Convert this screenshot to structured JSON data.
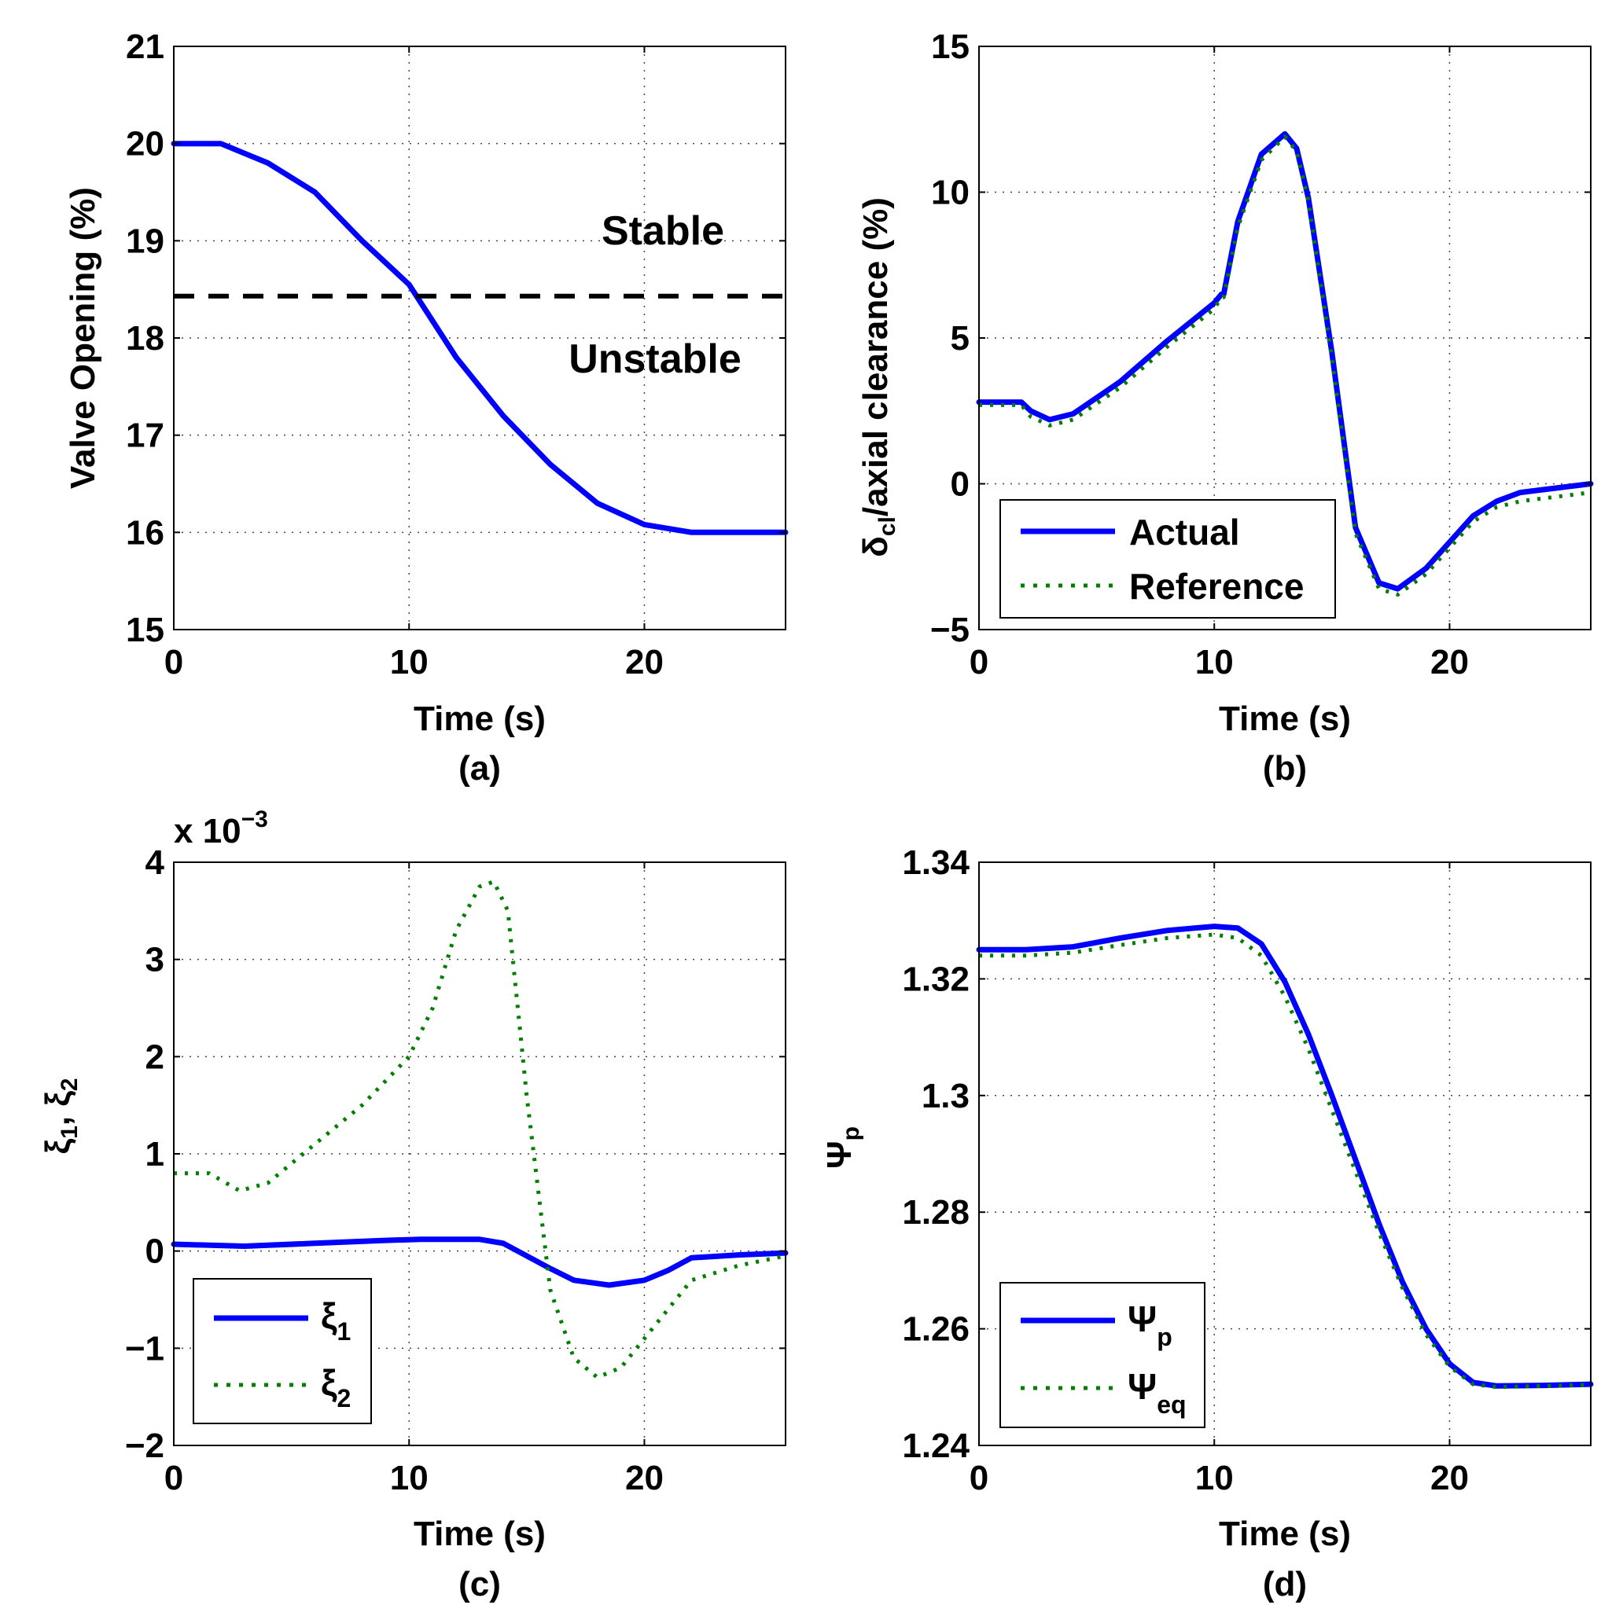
{
  "colors": {
    "actual": "#0000ff",
    "reference": "#007f00",
    "threshold": "#000000",
    "grid": "#444444",
    "axes": "#000000"
  },
  "chart_data": [
    {
      "panel": "(a)",
      "type": "line",
      "xlabel": "Time (s)",
      "ylabel": "Valve Opening (%)",
      "xlim": [
        0,
        26
      ],
      "ylim": [
        15,
        21
      ],
      "xticks": [
        0,
        10,
        20
      ],
      "xtick_labels": [
        "0",
        "10",
        "20"
      ],
      "yticks": [
        15,
        16,
        17,
        18,
        19,
        20,
        21
      ],
      "ytick_labels": [
        "15",
        "16",
        "17",
        "18",
        "19",
        "20",
        "21"
      ],
      "grid": true,
      "annotations": [
        "Stable",
        "Unstable"
      ],
      "series": [
        {
          "name": "Valve Opening",
          "style": "solid",
          "color": "#0000ff",
          "x": [
            0,
            2,
            4,
            6,
            8,
            10,
            12,
            14,
            16,
            18,
            20,
            22,
            26
          ],
          "y": [
            20,
            20,
            19.8,
            19.5,
            19.0,
            18.55,
            17.8,
            17.2,
            16.7,
            16.3,
            16.08,
            16.0,
            16.0
          ]
        },
        {
          "name": "Stability threshold",
          "style": "dashed",
          "color": "#000000",
          "x": [
            0,
            26.4
          ],
          "y": [
            18.43,
            18.43
          ]
        }
      ]
    },
    {
      "panel": "(b)",
      "type": "line",
      "xlabel": "Time (s)",
      "ylabel": "δcl/axial clearance (%)",
      "ylabel_main": "δ",
      "ylabel_sub": "cl",
      "ylabel_rest": "/axial clearance (%)",
      "xlim": [
        0,
        26
      ],
      "ylim": [
        -5,
        15
      ],
      "xticks": [
        0,
        10,
        20
      ],
      "xtick_labels": [
        "0",
        "10",
        "20"
      ],
      "yticks": [
        -5,
        0,
        5,
        10,
        15
      ],
      "ytick_labels": [
        "−5",
        "0",
        "5",
        "10",
        "15"
      ],
      "grid": true,
      "legend": {
        "position": "bottom-left",
        "entries": [
          "Actual",
          "Reference"
        ]
      },
      "series": [
        {
          "name": "Actual",
          "style": "solid",
          "color": "#0000ff",
          "x": [
            0,
            1.8,
            2.2,
            3,
            4,
            6,
            8,
            10,
            10.3,
            10.4,
            11,
            12,
            13,
            13.5,
            14,
            15,
            16,
            17,
            17.8,
            19,
            20,
            21,
            22,
            23,
            24,
            26
          ],
          "y": [
            2.8,
            2.8,
            2.5,
            2.2,
            2.4,
            3.5,
            4.9,
            6.2,
            6.5,
            6.5,
            9.0,
            11.3,
            12.0,
            11.5,
            9.8,
            4.5,
            -1.5,
            -3.4,
            -3.6,
            -2.9,
            -2.0,
            -1.1,
            -0.6,
            -0.3,
            -0.2,
            0
          ]
        },
        {
          "name": "Reference",
          "style": "dotted",
          "color": "#007f00",
          "x": [
            0,
            1.8,
            2.2,
            3,
            4,
            6,
            8,
            10,
            10.3,
            10.4,
            11,
            12,
            13,
            13.5,
            14,
            15,
            16,
            17,
            17.8,
            19,
            20,
            21,
            22,
            23,
            24,
            26
          ],
          "y": [
            2.7,
            2.7,
            2.3,
            2.0,
            2.2,
            3.3,
            4.7,
            6.0,
            6.4,
            6.4,
            8.8,
            11.1,
            11.9,
            11.4,
            9.7,
            4.3,
            -1.7,
            -3.6,
            -3.8,
            -3.1,
            -2.2,
            -1.3,
            -0.8,
            -0.6,
            -0.5,
            -0.3
          ]
        }
      ]
    },
    {
      "panel": "(c)",
      "type": "line",
      "xlabel": "Time (s)",
      "ylabel": "ξ1, ξ2",
      "exponent_label": "x 10",
      "exponent_power": "−3",
      "xlim": [
        0,
        26
      ],
      "ylim": [
        -2,
        4
      ],
      "xticks": [
        0,
        10,
        20
      ],
      "xtick_labels": [
        "0",
        "10",
        "20"
      ],
      "yticks": [
        -2,
        -1,
        0,
        1,
        2,
        3,
        4
      ],
      "ytick_labels": [
        "−2",
        "−1",
        "0",
        "1",
        "2",
        "3",
        "4"
      ],
      "grid": true,
      "legend": {
        "position": "bottom-left",
        "entries": [
          "ξ1",
          "ξ2"
        ]
      },
      "series": [
        {
          "name": "ξ1",
          "style": "solid",
          "color": "#0000ff",
          "x": [
            0,
            3,
            6,
            9,
            10.5,
            13,
            14,
            15,
            16,
            17,
            18.5,
            20,
            21,
            22,
            24,
            26
          ],
          "y": [
            0.07,
            0.05,
            0.08,
            0.11,
            0.12,
            0.12,
            0.08,
            -0.05,
            -0.18,
            -0.3,
            -0.35,
            -0.3,
            -0.2,
            -0.07,
            -0.04,
            -0.02
          ]
        },
        {
          "name": "ξ2",
          "style": "dotted",
          "color": "#007f00",
          "x": [
            0,
            1.5,
            2.8,
            4,
            6,
            8,
            10,
            11,
            12,
            13,
            13.6,
            14.2,
            15,
            16,
            17,
            18,
            19,
            20,
            21,
            22,
            24,
            26
          ],
          "y": [
            0.8,
            0.8,
            0.62,
            0.7,
            1.1,
            1.5,
            2.0,
            2.5,
            3.3,
            3.75,
            3.8,
            3.5,
            1.6,
            -0.4,
            -1.1,
            -1.3,
            -1.2,
            -0.9,
            -0.6,
            -0.3,
            -0.15,
            -0.05
          ]
        }
      ]
    },
    {
      "panel": "(d)",
      "type": "line",
      "xlabel": "Time (s)",
      "ylabel": "Ψp",
      "ylabel_main": "Ψ",
      "ylabel_sub": "p",
      "xlim": [
        0,
        26
      ],
      "ylim": [
        1.24,
        1.34
      ],
      "xticks": [
        0,
        10,
        20
      ],
      "xtick_labels": [
        "0",
        "10",
        "20"
      ],
      "yticks": [
        1.24,
        1.26,
        1.28,
        1.3,
        1.32,
        1.34
      ],
      "ytick_labels": [
        "1.24",
        "1.26",
        "1.28",
        "1.3",
        "1.32",
        "1.34"
      ],
      "grid": true,
      "legend": {
        "position": "bottom-left",
        "entries": [
          "Ψp",
          "Ψeq"
        ]
      },
      "legend_main": [
        "Ψ",
        "Ψ"
      ],
      "legend_sub": [
        "p",
        "eq"
      ],
      "series": [
        {
          "name": "Ψp",
          "style": "solid",
          "color": "#0000ff",
          "x": [
            0,
            2,
            4,
            6,
            8,
            10,
            11,
            12,
            13,
            14,
            15,
            16,
            17,
            18,
            19,
            20,
            21,
            22,
            24,
            26
          ],
          "y": [
            1.325,
            1.325,
            1.3255,
            1.327,
            1.3283,
            1.329,
            1.3287,
            1.326,
            1.3195,
            1.3105,
            1.3,
            1.289,
            1.278,
            1.268,
            1.26,
            1.254,
            1.2508,
            1.2502,
            1.2503,
            1.2505
          ]
        },
        {
          "name": "Ψeq",
          "style": "dotted",
          "color": "#007f00",
          "x": [
            0,
            2,
            4,
            6,
            8,
            10,
            11,
            12,
            13,
            14,
            15,
            16,
            17,
            18,
            19,
            20,
            21,
            22,
            24,
            26
          ],
          "y": [
            1.324,
            1.324,
            1.3245,
            1.3258,
            1.327,
            1.3276,
            1.327,
            1.324,
            1.317,
            1.308,
            1.2975,
            1.287,
            1.2765,
            1.267,
            1.259,
            1.2535,
            1.2505,
            1.25,
            1.2502,
            1.2504
          ]
        }
      ]
    }
  ]
}
